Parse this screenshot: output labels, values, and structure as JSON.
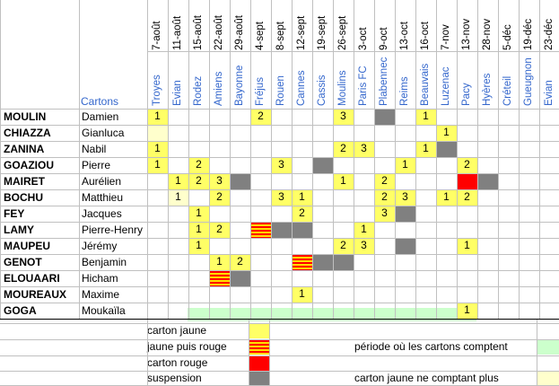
{
  "header": {
    "cartons_label": "Cartons",
    "dates": [
      "7-août",
      "11-août",
      "15-août",
      "22-août",
      "29-août",
      "4-sept",
      "8-sept",
      "12-sept",
      "19-sept",
      "26-sept",
      "3-oct",
      "9-oct",
      "13-oct",
      "16-oct",
      "7-nov",
      "13-nov",
      "28-nov",
      "5-déc",
      "19-déc",
      "23-déc"
    ],
    "opponents": [
      "Troyes",
      "Evian",
      "Rodez",
      "Amiens",
      "Bayonne",
      "Fréjus",
      "Rouen",
      "Cannes",
      "Cassis",
      "Moulins",
      "Paris FC",
      "Plabennec",
      "Reims",
      "Beauvais",
      "Luzenac",
      "Pacy",
      "Hyères",
      "Créteil",
      "Gueugnon",
      "Evian"
    ]
  },
  "players": [
    {
      "last": "MOULIN",
      "first": "Damien"
    },
    {
      "last": "CHIAZZA",
      "first": "Gianluca"
    },
    {
      "last": "ZANINA",
      "first": "Nabil"
    },
    {
      "last": "GOAZIOU",
      "first": "Pierre"
    },
    {
      "last": "MAIRET",
      "first": "Aurélien"
    },
    {
      "last": "BOCHU",
      "first": "Matthieu"
    },
    {
      "last": "FEY",
      "first": "Jacques"
    },
    {
      "last": "LAMY",
      "first": "Pierre-Henry"
    },
    {
      "last": "MAUPEU",
      "first": "Jérémy"
    },
    {
      "last": "GENOT",
      "first": "Benjamin"
    },
    {
      "last": "ELOUAARI",
      "first": "Hicham"
    },
    {
      "last": "MOUREAUX",
      "first": "Maxime"
    },
    {
      "last": "GOGA",
      "first": "Moukaïla"
    }
  ],
  "grid": [
    [
      {
        "c": 0,
        "t": "y",
        "v": "1"
      },
      {
        "c": 5,
        "t": "y",
        "v": "2"
      },
      {
        "c": 9,
        "t": "y",
        "v": "3"
      },
      {
        "c": 11,
        "t": "g"
      },
      {
        "c": 13,
        "t": "y",
        "v": "1"
      }
    ],
    [
      {
        "c": 0,
        "t": "p"
      },
      {
        "c": 14,
        "t": "y",
        "v": "1"
      }
    ],
    [
      {
        "c": 0,
        "t": "y",
        "v": "1"
      },
      {
        "c": 9,
        "t": "y",
        "v": "2"
      },
      {
        "c": 10,
        "t": "y",
        "v": "3"
      },
      {
        "c": 13,
        "t": "y",
        "v": "1"
      },
      {
        "c": 14,
        "t": "g"
      }
    ],
    [
      {
        "c": 0,
        "t": "y",
        "v": "1"
      },
      {
        "c": 2,
        "t": "y",
        "v": "2"
      },
      {
        "c": 6,
        "t": "y",
        "v": "3"
      },
      {
        "c": 8,
        "t": "g"
      },
      {
        "c": 12,
        "t": "y",
        "v": "1"
      },
      {
        "c": 15,
        "t": "y",
        "v": "2"
      }
    ],
    [
      {
        "c": 1,
        "t": "y",
        "v": "1"
      },
      {
        "c": 2,
        "t": "y",
        "v": "2"
      },
      {
        "c": 3,
        "t": "y",
        "v": "3"
      },
      {
        "c": 4,
        "t": "g"
      },
      {
        "c": 9,
        "t": "y",
        "v": "1"
      },
      {
        "c": 11,
        "t": "y",
        "v": "2"
      },
      {
        "c": 15,
        "t": "r"
      },
      {
        "c": 16,
        "t": "g"
      }
    ],
    [
      {
        "c": 1,
        "t": "p",
        "v": "1"
      },
      {
        "c": 3,
        "t": "y",
        "v": "2"
      },
      {
        "c": 6,
        "t": "y",
        "v": "3"
      },
      {
        "c": 7,
        "t": "y",
        "v": "1"
      },
      {
        "c": 11,
        "t": "y",
        "v": "2"
      },
      {
        "c": 12,
        "t": "y",
        "v": "3"
      },
      {
        "c": 14,
        "t": "y",
        "v": "1"
      },
      {
        "c": 15,
        "t": "y",
        "v": "2"
      }
    ],
    [
      {
        "c": 2,
        "t": "y",
        "v": "1"
      },
      {
        "c": 7,
        "t": "y",
        "v": "2"
      },
      {
        "c": 11,
        "t": "y",
        "v": "3"
      },
      {
        "c": 12,
        "t": "g"
      }
    ],
    [
      {
        "c": 2,
        "t": "y",
        "v": "1"
      },
      {
        "c": 3,
        "t": "y",
        "v": "2"
      },
      {
        "c": 5,
        "t": "s"
      },
      {
        "c": 6,
        "t": "g"
      },
      {
        "c": 7,
        "t": "g"
      },
      {
        "c": 10,
        "t": "y",
        "v": "1"
      }
    ],
    [
      {
        "c": 2,
        "t": "y",
        "v": "1"
      },
      {
        "c": 9,
        "t": "y",
        "v": "2"
      },
      {
        "c": 10,
        "t": "y",
        "v": "3"
      },
      {
        "c": 12,
        "t": "g"
      },
      {
        "c": 15,
        "t": "y",
        "v": "1"
      }
    ],
    [
      {
        "c": 3,
        "t": "y",
        "v": "1"
      },
      {
        "c": 4,
        "t": "y",
        "v": "2"
      },
      {
        "c": 7,
        "t": "s"
      },
      {
        "c": 8,
        "t": "g"
      },
      {
        "c": 9,
        "t": "g"
      }
    ],
    [
      {
        "c": 3,
        "t": "s"
      },
      {
        "c": 4,
        "t": "g"
      }
    ],
    [
      {
        "c": 7,
        "t": "y",
        "v": "1"
      }
    ],
    [
      {
        "c": 15,
        "t": "y",
        "v": "1"
      }
    ]
  ],
  "legend": {
    "yellow": "carton jaune",
    "yellow_red": "jaune puis rouge",
    "red": "carton rouge",
    "suspension": "suspension",
    "period": "période où les cartons comptent",
    "not_counting": "carton jaune ne comptant plus"
  },
  "colors": {
    "yellow": "#ffff66",
    "red": "#ff0000",
    "grey": "#808080",
    "green": "#ccffcc",
    "pale_yellow": "#ffffcc",
    "link_blue": "#3366cc"
  }
}
